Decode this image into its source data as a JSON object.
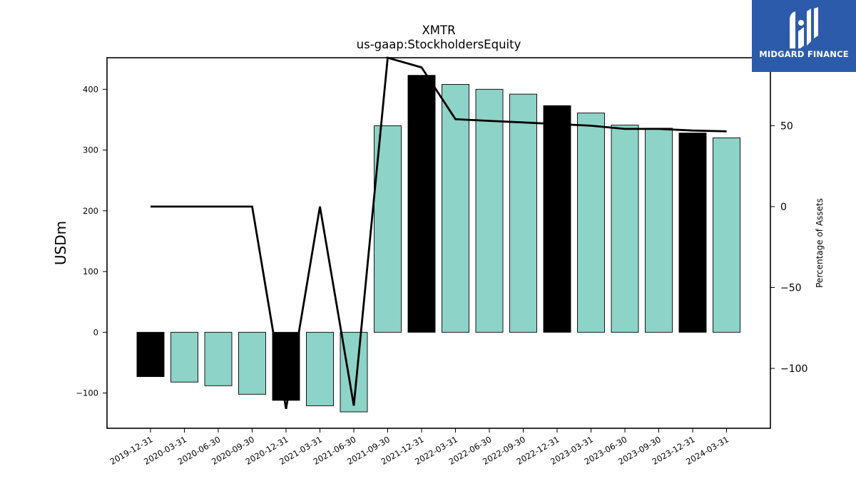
{
  "chart_data": {
    "type": "bar",
    "title": "XMTR",
    "subtitle": "us-gaap:StockholdersEquity",
    "ylabel": "USDm",
    "y2label": "Percentage of Assets",
    "ylim": [
      -158,
      452
    ],
    "y2lim": [
      -137,
      92
    ],
    "yticks": [
      -100,
      0,
      100,
      200,
      300,
      400
    ],
    "y2ticks": [
      -100,
      -50,
      0,
      50
    ],
    "y2tick_labels": [
      "−100",
      "−50",
      "0",
      "50"
    ],
    "ytick_labels": [
      "−100",
      "0",
      "100",
      "200",
      "300",
      "400"
    ],
    "categories": [
      "2019-12-31",
      "2020-03-31",
      "2020-06-30",
      "2020-09-30",
      "2020-12-31",
      "2021-03-31",
      "2021-06-30",
      "2021-09-30",
      "2021-12-31",
      "2022-03-31",
      "2022-06-30",
      "2022-09-30",
      "2022-12-31",
      "2023-03-31",
      "2023-06-30",
      "2023-09-30",
      "2023-12-31",
      "2024-03-31"
    ],
    "series": [
      {
        "type": "bar",
        "axis": "left",
        "values": [
          -73,
          -82,
          -88,
          -102,
          -112,
          -121,
          -131,
          340,
          423,
          408,
          400,
          392,
          373,
          361,
          341,
          336,
          328,
          320
        ]
      },
      {
        "type": "line",
        "axis": "right",
        "values": [
          0,
          0,
          0,
          0,
          -125,
          0,
          -123,
          92,
          86,
          54,
          53,
          52,
          51,
          50,
          48,
          48,
          47,
          46.5
        ]
      }
    ],
    "bar_colors": {
      "year_end": "#000000",
      "quarter": "#8dd3c7"
    },
    "year_end_flags": [
      true,
      false,
      false,
      false,
      true,
      false,
      false,
      false,
      true,
      false,
      false,
      false,
      true,
      false,
      false,
      false,
      true,
      false
    ],
    "line_color": "#000000",
    "grid": false,
    "legend": "none"
  },
  "branding": {
    "logo_text": "MIDGARD FINANCE",
    "logo_bg": "#2d5bab"
  }
}
